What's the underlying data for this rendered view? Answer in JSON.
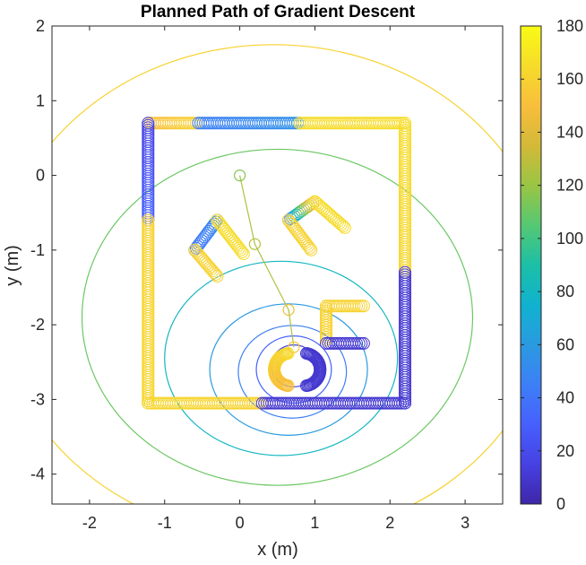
{
  "chart_data": {
    "type": "scatter",
    "title": "Planned Path of Gradient Descent",
    "xlabel": "x (m)",
    "ylabel": "y (m)",
    "xlim": [
      -2.5,
      3.5
    ],
    "ylim": [
      -4.4,
      2.0
    ],
    "xticks": [
      "-2",
      "-1",
      "0",
      "1",
      "2",
      "3"
    ],
    "xtick_values": [
      -2,
      -1,
      0,
      1,
      2,
      3
    ],
    "yticks": [
      "2",
      "1",
      "0",
      "-1",
      "-2",
      "-3",
      "-4"
    ],
    "ytick_values": [
      2,
      1,
      0,
      -1,
      -2,
      -3,
      -4
    ],
    "colorbar": {
      "range": [
        0,
        180
      ],
      "ticks": [
        "180",
        "160",
        "140",
        "120",
        "100",
        "80",
        "60",
        "40",
        "20",
        "0"
      ],
      "tick_values": [
        180,
        160,
        140,
        120,
        100,
        80,
        60,
        40,
        20,
        0
      ],
      "colormap": [
        "#3e26a8",
        "#4741e3",
        "#4660fe",
        "#3d7ff6",
        "#2a9ae0",
        "#10b2cf",
        "#1cbfa6",
        "#55c873",
        "#9ac544",
        "#d4b938",
        "#f8be3c",
        "#f6dc2a",
        "#f9fb15"
      ]
    },
    "contours": [
      {
        "level": 15,
        "cx": 0.72,
        "cy": -2.55,
        "rx": 0.3,
        "ry": 0.28
      },
      {
        "level": 30,
        "cx": 0.72,
        "cy": -2.6,
        "rx": 0.5,
        "ry": 0.45
      },
      {
        "level": 45,
        "cx": 0.7,
        "cy": -2.63,
        "rx": 0.72,
        "ry": 0.62
      },
      {
        "level": 60,
        "cx": 0.65,
        "cy": -2.6,
        "rx": 1.05,
        "ry": 0.88
      },
      {
        "level": 80,
        "cx": 0.55,
        "cy": -2.45,
        "rx": 1.55,
        "ry": 1.3
      },
      {
        "level": 110,
        "cx": 0.5,
        "cy": -1.9,
        "rx": 2.6,
        "ry": 2.25
      },
      {
        "level": 160,
        "cx": 0.45,
        "cy": -1.55,
        "rx": 3.7,
        "ry": 3.3
      }
    ],
    "path": {
      "points": [
        [
          0.0,
          0.0
        ],
        [
          0.2,
          -0.92
        ],
        [
          0.65,
          -1.8
        ],
        [
          0.72,
          -2.3
        ]
      ],
      "values": [
        115,
        128,
        145,
        155
      ]
    },
    "obstacle_segments": [
      {
        "from": [
          -1.22,
          0.7
        ],
        "to": [
          -0.55,
          0.7
        ],
        "v0": 150,
        "v1": 160
      },
      {
        "from": [
          -0.55,
          0.7
        ],
        "to": [
          0.8,
          0.7
        ],
        "v0": 45,
        "v1": 55
      },
      {
        "from": [
          0.8,
          0.7
        ],
        "to": [
          2.2,
          0.7
        ],
        "v0": 165,
        "v1": 165
      },
      {
        "from": [
          -1.22,
          0.7
        ],
        "to": [
          -1.22,
          -0.6
        ],
        "v0": 15,
        "v1": 30
      },
      {
        "from": [
          -1.22,
          -0.6
        ],
        "to": [
          -1.22,
          -3.05
        ],
        "v0": 160,
        "v1": 162
      },
      {
        "from": [
          -1.22,
          -3.05
        ],
        "to": [
          0.3,
          -3.05
        ],
        "v0": 162,
        "v1": 160
      },
      {
        "from": [
          0.3,
          -3.05
        ],
        "to": [
          2.2,
          -3.05
        ],
        "v0": 10,
        "v1": 10
      },
      {
        "from": [
          2.2,
          0.7
        ],
        "to": [
          2.2,
          -1.3
        ],
        "v0": 165,
        "v1": 162
      },
      {
        "from": [
          2.2,
          -1.3
        ],
        "to": [
          2.2,
          -3.05
        ],
        "v0": 10,
        "v1": 10
      },
      {
        "from": [
          -0.6,
          -1.0
        ],
        "to": [
          -0.3,
          -0.6
        ],
        "v0": 40,
        "v1": 50
      },
      {
        "from": [
          -0.3,
          -0.6
        ],
        "to": [
          0.05,
          -1.05
        ],
        "v0": 165,
        "v1": 165
      },
      {
        "from": [
          -0.6,
          -1.0
        ],
        "to": [
          -0.3,
          -1.35
        ],
        "v0": 160,
        "v1": 160
      },
      {
        "from": [
          0.65,
          -0.6
        ],
        "to": [
          1.0,
          -0.35
        ],
        "v0": 40,
        "v1": 165
      },
      {
        "from": [
          1.0,
          -0.35
        ],
        "to": [
          1.4,
          -0.7
        ],
        "v0": 165,
        "v1": 165
      },
      {
        "from": [
          0.65,
          -0.6
        ],
        "to": [
          0.95,
          -1.0
        ],
        "v0": 160,
        "v1": 160
      },
      {
        "from": [
          1.15,
          -1.75
        ],
        "to": [
          1.65,
          -1.75
        ],
        "v0": 160,
        "v1": 160
      },
      {
        "from": [
          1.15,
          -1.75
        ],
        "to": [
          1.15,
          -2.2
        ],
        "v0": 160,
        "v1": 160
      },
      {
        "from": [
          1.15,
          -2.25
        ],
        "to": [
          1.65,
          -2.25
        ],
        "v0": 10,
        "v1": 10
      }
    ],
    "arcs": [
      {
        "cx": 0.68,
        "cy": -2.6,
        "r": 0.22,
        "start_deg": 100,
        "end_deg": 260,
        "v0": 165,
        "v1": 150
      },
      {
        "cx": 0.85,
        "cy": -2.6,
        "r": 0.22,
        "start_deg": -80,
        "end_deg": 80,
        "v0": 10,
        "v1": 10
      }
    ]
  }
}
